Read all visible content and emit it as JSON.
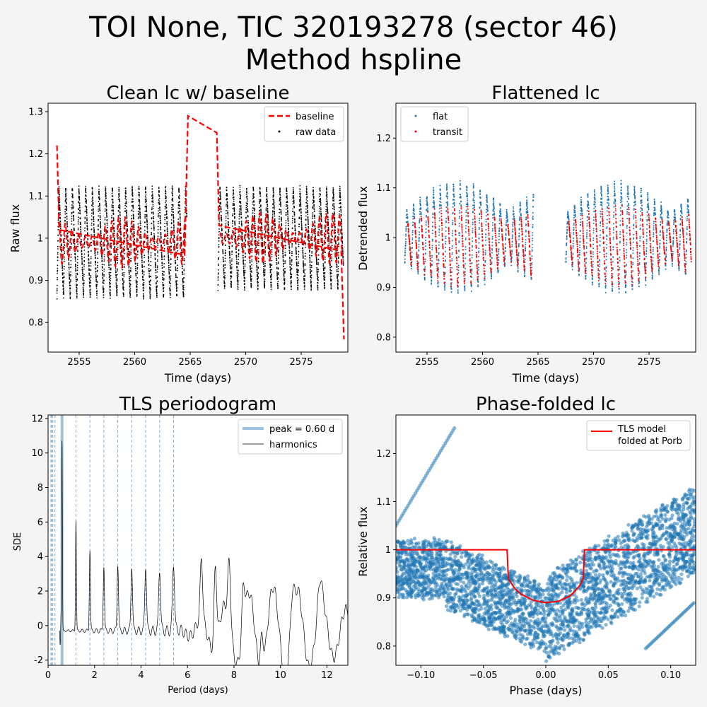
{
  "figure": {
    "title_line1": "TOI None, TIC 320193278 (sector 46)",
    "title_line2": "Method hspline"
  },
  "chart_data": [
    {
      "type": "scatter",
      "title": "Clean lc w/ baseline",
      "xlabel": "Time (days)",
      "ylabel": "Raw flux",
      "xlim": [
        2552.2,
        2579.2
      ],
      "ylim": [
        0.73,
        1.32
      ],
      "xticks": [
        2555,
        2560,
        2565,
        2570,
        2575
      ],
      "yticks": [
        0.8,
        0.9,
        1.0,
        1.1,
        1.2,
        1.3
      ],
      "legend_position": "upper right",
      "series": [
        {
          "name": "baseline",
          "style": "dashed",
          "color": "#ff0000",
          "points": [
            [
              2553.0,
              1.22
            ],
            [
              2553.2,
              1.02
            ],
            [
              2564.5,
              0.96
            ],
            [
              2564.8,
              1.29
            ],
            [
              2567.4,
              1.25
            ],
            [
              2567.6,
              1.03
            ],
            [
              2578.6,
              0.97
            ],
            [
              2578.85,
              0.76
            ]
          ]
        },
        {
          "name": "raw data",
          "style": "dots",
          "color": "#000000",
          "segments": [
            {
              "t0": 2553.0,
              "t1": 2564.7,
              "mean": 0.99,
              "amp": 0.13
            },
            {
              "t0": 2567.5,
              "t1": 2578.8,
              "mean": 1.0,
              "amp": 0.12
            }
          ],
          "oscillation_period_days": 0.6
        }
      ]
    },
    {
      "type": "scatter",
      "title": "Flattened lc",
      "xlabel": "Time (days)",
      "ylabel": "Detrended flux",
      "xlim": [
        2552.2,
        2579.2
      ],
      "ylim": [
        0.77,
        1.27
      ],
      "xticks": [
        2555,
        2560,
        2565,
        2570,
        2575
      ],
      "yticks": [
        0.8,
        0.9,
        1.0,
        1.1,
        1.2
      ],
      "legend_position": "upper left",
      "series": [
        {
          "name": "flat",
          "color": "#1f77b4"
        },
        {
          "name": "transit",
          "color": "#ff0000"
        }
      ],
      "segments": [
        {
          "t0": 2553.0,
          "t1": 2564.6
        },
        {
          "t0": 2567.5,
          "t1": 2578.8
        }
      ],
      "oscillation_period_days": 0.6
    },
    {
      "type": "line",
      "title": "TLS periodogram",
      "xlabel": "Period (days)",
      "ylabel": "SDE",
      "xlim": [
        0,
        12.9
      ],
      "ylim": [
        -2.3,
        12.2
      ],
      "xticks": [
        0,
        2,
        4,
        6,
        8,
        10,
        12
      ],
      "yticks": [
        -2,
        0,
        2,
        4,
        6,
        8,
        10,
        12
      ],
      "legend_position": "upper right",
      "peak": {
        "label": "peak = 0.60 d",
        "period": 0.6,
        "color": "#9ec3df"
      },
      "harmonics_label": "harmonics",
      "harmonic_periods": [
        0.12,
        0.15,
        0.2,
        0.3,
        1.2,
        1.8,
        2.4,
        3.0,
        3.6,
        4.2,
        4.8,
        5.4
      ],
      "peaks": [
        [
          0.6,
          11.5
        ],
        [
          1.2,
          6.1
        ],
        [
          1.8,
          4.4
        ],
        [
          2.4,
          3.5
        ],
        [
          3.0,
          3.6
        ],
        [
          3.6,
          3.5
        ],
        [
          4.2,
          3.5
        ],
        [
          4.8,
          3.3
        ],
        [
          5.4,
          3.6
        ],
        [
          6.6,
          3.3
        ],
        [
          7.2,
          4.3
        ],
        [
          7.8,
          3.2
        ],
        [
          8.4,
          2.1
        ],
        [
          9.2,
          1.8
        ],
        [
          10.5,
          1.4
        ],
        [
          11.7,
          1.0
        ]
      ]
    },
    {
      "type": "scatter",
      "title": "Phase-folded lc",
      "xlabel": "Phase (days)",
      "ylabel": "Relative flux",
      "xlim": [
        -0.12,
        0.12
      ],
      "ylim": [
        0.76,
        1.28
      ],
      "xticks": [
        -0.1,
        -0.05,
        0.0,
        0.05,
        0.1
      ],
      "xtick_labels": [
        "−0.10",
        "−0.05",
        "0.00",
        "0.05",
        "0.10"
      ],
      "yticks": [
        0.8,
        0.9,
        1.0,
        1.1,
        1.2
      ],
      "legend_position": "upper right",
      "model": {
        "label_line1": "TLS model",
        "label_line2": "folded at Porb",
        "color": "#ff0000",
        "points": [
          [
            -0.12,
            1.0
          ],
          [
            -0.031,
            1.0
          ],
          [
            -0.03,
            0.94
          ],
          [
            -0.025,
            0.92
          ],
          [
            -0.02,
            0.908
          ],
          [
            -0.01,
            0.895
          ],
          [
            0.0,
            0.89
          ],
          [
            0.01,
            0.893
          ],
          [
            0.02,
            0.905
          ],
          [
            0.027,
            0.925
          ],
          [
            0.03,
            0.94
          ],
          [
            0.031,
            1.0
          ],
          [
            0.12,
            1.0
          ]
        ]
      },
      "points_color": "#1f77b4"
    }
  ]
}
